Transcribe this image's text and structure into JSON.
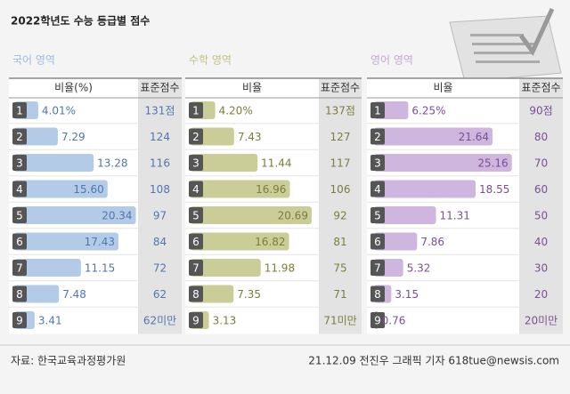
{
  "header": {
    "title": "2022학년도 수능 등급별 점수"
  },
  "chart_data": [
    {
      "type": "bar",
      "title": "국어 영역",
      "value_header": "비율(%)",
      "score_header": "표준점수",
      "categories": [
        "1",
        "2",
        "3",
        "4",
        "5",
        "6",
        "7",
        "8",
        "9"
      ],
      "values": [
        4.01,
        7.29,
        13.28,
        15.6,
        20.34,
        17.43,
        11.15,
        7.48,
        3.41
      ],
      "value_labels": [
        "4.01%",
        "7.29",
        "13.28",
        "15.60",
        "20.34",
        "17.43",
        "11.15",
        "7.48",
        "3.41"
      ],
      "scores": [
        "131점",
        "124",
        "116",
        "108",
        "97",
        "84",
        "72",
        "62",
        "62미만"
      ],
      "color": "#b3cbe6",
      "title_color": "#9dbbe0",
      "label_color": "#4f77ad",
      "xlim": [
        0,
        21
      ]
    },
    {
      "type": "bar",
      "title": "수학 영역",
      "value_header": "비율",
      "score_header": "표준점수",
      "categories": [
        "1",
        "2",
        "3",
        "4",
        "5",
        "6",
        "7",
        "8",
        "9"
      ],
      "values": [
        4.2,
        7.43,
        11.44,
        16.96,
        20.69,
        16.82,
        11.98,
        7.35,
        3.13
      ],
      "value_labels": [
        "4.20%",
        "7.43",
        "11.44",
        "16.96",
        "20.69",
        "16.82",
        "11.98",
        "7.35",
        "3.13"
      ],
      "scores": [
        "137점",
        "127",
        "117",
        "106",
        "92",
        "81",
        "75",
        "71",
        "71미만"
      ],
      "color": "#cbcd98",
      "title_color": "#c0c283",
      "label_color": "#7b7d3a",
      "xlim": [
        0,
        21
      ]
    },
    {
      "type": "bar",
      "title": "영어 영역",
      "value_header": "비율",
      "score_header": "표준점수",
      "categories": [
        "1",
        "2",
        "3",
        "4",
        "5",
        "6",
        "7",
        "8",
        "9"
      ],
      "values": [
        6.25,
        21.64,
        25.16,
        18.55,
        11.31,
        7.86,
        5.32,
        3.15,
        0.76
      ],
      "value_labels": [
        "6.25%",
        "21.64",
        "25.16",
        "18.55",
        "11.31",
        "7.86",
        "5.32",
        "3.15",
        "0.76"
      ],
      "scores": [
        "90점",
        "80",
        "70",
        "60",
        "50",
        "40",
        "30",
        "20",
        "20미만"
      ],
      "color": "#cfb6df",
      "title_color": "#c6a6d8",
      "label_color": "#7a4f93",
      "xlim": [
        0,
        27
      ]
    }
  ],
  "footer": {
    "source": "자료: 한국교육과정평가원",
    "credit": "21.12.09 전진우 그래픽 기자 618tue@newsis.com"
  }
}
